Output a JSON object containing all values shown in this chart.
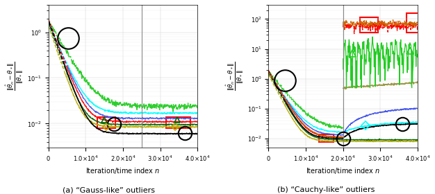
{
  "xlabel": "Iteration/time index $n$",
  "ylabel_a": "$\\|\\hat{\\theta}_n - \\theta_*\\| / \\|\\theta_*\\|$",
  "ylabel_b": "$\\|\\hat{\\theta}_n - \\theta_*\\| / \\|\\theta_*\\|$",
  "xlim": [
    0,
    40000
  ],
  "ylim_a": [
    0.003,
    4.0
  ],
  "ylim_b": [
    0.005,
    300.0
  ],
  "vline_a": 25000,
  "vline_b": 20000,
  "n_points": 500,
  "seed": 7,
  "caption_a": "(a) “Gauss-like” outliers",
  "caption_b": "(b) “Cauchy-like” outliers"
}
